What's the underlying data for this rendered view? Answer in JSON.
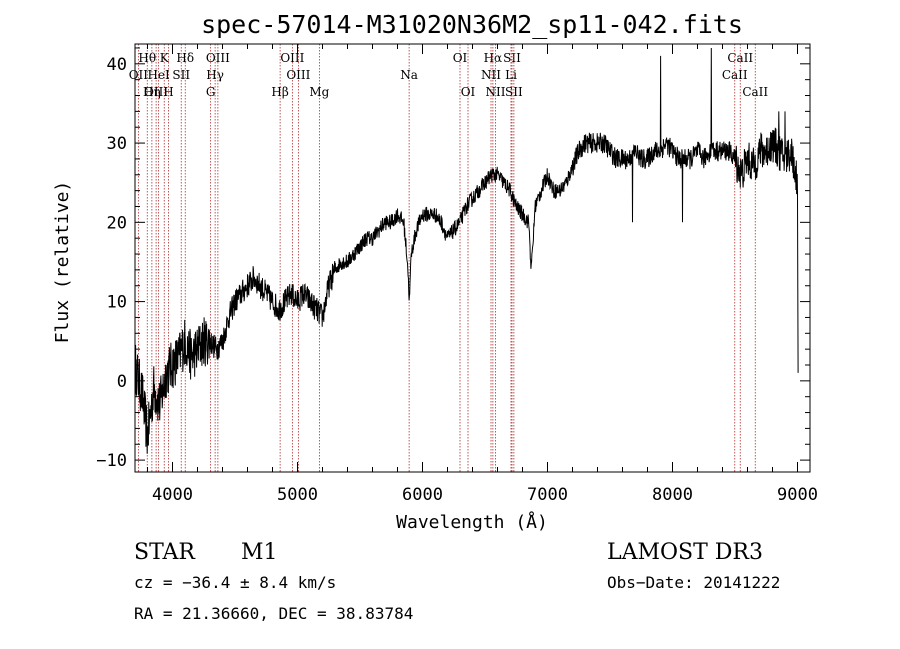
{
  "chart_data": {
    "type": "line",
    "title": "spec-57014-M31020N36M2_sp11-042.fits",
    "xlabel": "Wavelength (Å)",
    "ylabel": "Flux (relative)",
    "xlim": [
      3700,
      9100
    ],
    "ylim": [
      -11.5,
      42.5
    ],
    "xticks": [
      4000,
      5000,
      6000,
      7000,
      8000,
      9000
    ],
    "yticks": [
      -10,
      0,
      10,
      20,
      30,
      40
    ],
    "grid": false,
    "series": [
      {
        "name": "spectrum",
        "anchors": [
          [
            3700,
            2
          ],
          [
            3760,
            -2
          ],
          [
            3800,
            -7
          ],
          [
            3850,
            -1
          ],
          [
            3900,
            -3
          ],
          [
            3950,
            1
          ],
          [
            4000,
            2
          ],
          [
            4050,
            3
          ],
          [
            4100,
            5
          ],
          [
            4150,
            3
          ],
          [
            4200,
            4
          ],
          [
            4250,
            5
          ],
          [
            4300,
            5
          ],
          [
            4350,
            4
          ],
          [
            4400,
            5
          ],
          [
            4450,
            8
          ],
          [
            4500,
            10
          ],
          [
            4550,
            11
          ],
          [
            4600,
            12
          ],
          [
            4650,
            13
          ],
          [
            4700,
            12
          ],
          [
            4750,
            11
          ],
          [
            4800,
            10
          ],
          [
            4850,
            9
          ],
          [
            4900,
            10
          ],
          [
            4950,
            11
          ],
          [
            5000,
            10
          ],
          [
            5050,
            11
          ],
          [
            5100,
            10
          ],
          [
            5150,
            9
          ],
          [
            5200,
            8
          ],
          [
            5250,
            12
          ],
          [
            5300,
            14
          ],
          [
            5350,
            15
          ],
          [
            5400,
            15
          ],
          [
            5450,
            16
          ],
          [
            5500,
            17
          ],
          [
            5550,
            18
          ],
          [
            5600,
            18
          ],
          [
            5650,
            19
          ],
          [
            5700,
            20
          ],
          [
            5750,
            20
          ],
          [
            5800,
            21
          ],
          [
            5850,
            20
          ],
          [
            5880,
            15
          ],
          [
            5895,
            10
          ],
          [
            5910,
            16
          ],
          [
            5950,
            19
          ],
          [
            6000,
            21
          ],
          [
            6050,
            21
          ],
          [
            6100,
            21
          ],
          [
            6150,
            20
          ],
          [
            6200,
            18
          ],
          [
            6250,
            19
          ],
          [
            6300,
            20
          ],
          [
            6350,
            22
          ],
          [
            6400,
            23
          ],
          [
            6450,
            24
          ],
          [
            6500,
            25
          ],
          [
            6550,
            26
          ],
          [
            6600,
            26
          ],
          [
            6650,
            25
          ],
          [
            6700,
            24
          ],
          [
            6750,
            22
          ],
          [
            6800,
            21
          ],
          [
            6850,
            20
          ],
          [
            6870,
            14
          ],
          [
            6890,
            19
          ],
          [
            6900,
            22
          ],
          [
            6950,
            24
          ],
          [
            7000,
            26
          ],
          [
            7050,
            24
          ],
          [
            7100,
            24
          ],
          [
            7150,
            25
          ],
          [
            7200,
            27
          ],
          [
            7250,
            29
          ],
          [
            7300,
            30
          ],
          [
            7350,
            30
          ],
          [
            7400,
            30
          ],
          [
            7450,
            30
          ],
          [
            7500,
            29
          ],
          [
            7550,
            28
          ],
          [
            7600,
            28
          ],
          [
            7650,
            28
          ],
          [
            7700,
            29
          ],
          [
            7750,
            28
          ],
          [
            7800,
            28
          ],
          [
            7850,
            29
          ],
          [
            7900,
            29
          ],
          [
            7950,
            30
          ],
          [
            8000,
            29
          ],
          [
            8050,
            28
          ],
          [
            8100,
            28
          ],
          [
            8150,
            28
          ],
          [
            8200,
            29
          ],
          [
            8250,
            28
          ],
          [
            8300,
            29
          ],
          [
            8350,
            29
          ],
          [
            8400,
            29
          ],
          [
            8450,
            29
          ],
          [
            8500,
            28
          ],
          [
            8550,
            26
          ],
          [
            8600,
            28
          ],
          [
            8650,
            27
          ],
          [
            8700,
            29
          ],
          [
            8750,
            29
          ],
          [
            8800,
            30
          ],
          [
            8850,
            29
          ],
          [
            8900,
            28
          ],
          [
            8950,
            29
          ],
          [
            9000,
            25
          ],
          [
            9005,
            2
          ]
        ],
        "spikes": [
          [
            7906,
            41
          ],
          [
            8310,
            42
          ],
          [
            8320,
            30
          ],
          [
            8080,
            20
          ],
          [
            8850,
            34
          ],
          [
            8900,
            34
          ],
          [
            7680,
            20
          ]
        ]
      }
    ],
    "emission_lines": [
      {
        "label": "Hθ",
        "wave": 3798,
        "row": 1
      },
      {
        "label": "OII",
        "wave": 3727,
        "row": 2
      },
      {
        "label": "OIII",
        "wave": 3869,
        "row": 3
      },
      {
        "label": "K",
        "wave": 3934,
        "row": 1
      },
      {
        "label": "HeI",
        "wave": 3889,
        "row": 2
      },
      {
        "label": "Hη",
        "wave": 3835,
        "row": 3
      },
      {
        "label": "Hδ",
        "wave": 4102,
        "row": 1
      },
      {
        "label": "SII",
        "wave": 4070,
        "row": 2
      },
      {
        "label": "H",
        "wave": 3968,
        "row": 3
      },
      {
        "label": "OIII",
        "wave": 4363,
        "row": 1
      },
      {
        "label": "Hγ",
        "wave": 4341,
        "row": 2
      },
      {
        "label": "G",
        "wave": 4305,
        "row": 3
      },
      {
        "label": "OIII",
        "wave": 4959,
        "row": 1
      },
      {
        "label": "OIII",
        "wave": 5007,
        "row": 2
      },
      {
        "label": "Hβ",
        "wave": 4861,
        "row": 3
      },
      {
        "label": "Mg",
        "wave": 5175,
        "row": 3
      },
      {
        "label": "Na",
        "wave": 5893,
        "row": 2
      },
      {
        "label": "OI",
        "wave": 6300,
        "row": 1
      },
      {
        "label": "OI",
        "wave": 6364,
        "row": 3
      },
      {
        "label": "Hα",
        "wave": 6563,
        "row": 1
      },
      {
        "label": "SII",
        "wave": 6716,
        "row": 1
      },
      {
        "label": "NII",
        "wave": 6548,
        "row": 2
      },
      {
        "label": "Li",
        "wave": 6708,
        "row": 2
      },
      {
        "label": "NII",
        "wave": 6584,
        "row": 3
      },
      {
        "label": "SII",
        "wave": 6731,
        "row": 3
      },
      {
        "label": "CaII",
        "wave": 8542,
        "row": 1
      },
      {
        "label": "CaII",
        "wave": 8498,
        "row": 2
      },
      {
        "label": "CaII",
        "wave": 8662,
        "row": 3
      }
    ]
  },
  "info": {
    "class": "STAR",
    "subclass": "M1",
    "survey": "LAMOST DR3",
    "cz": "cz = −36.4 ± 8.4 km/s",
    "obs_date": "Obs−Date: 20141222",
    "coords": "RA =  21.36660, DEC =  38.83784"
  }
}
